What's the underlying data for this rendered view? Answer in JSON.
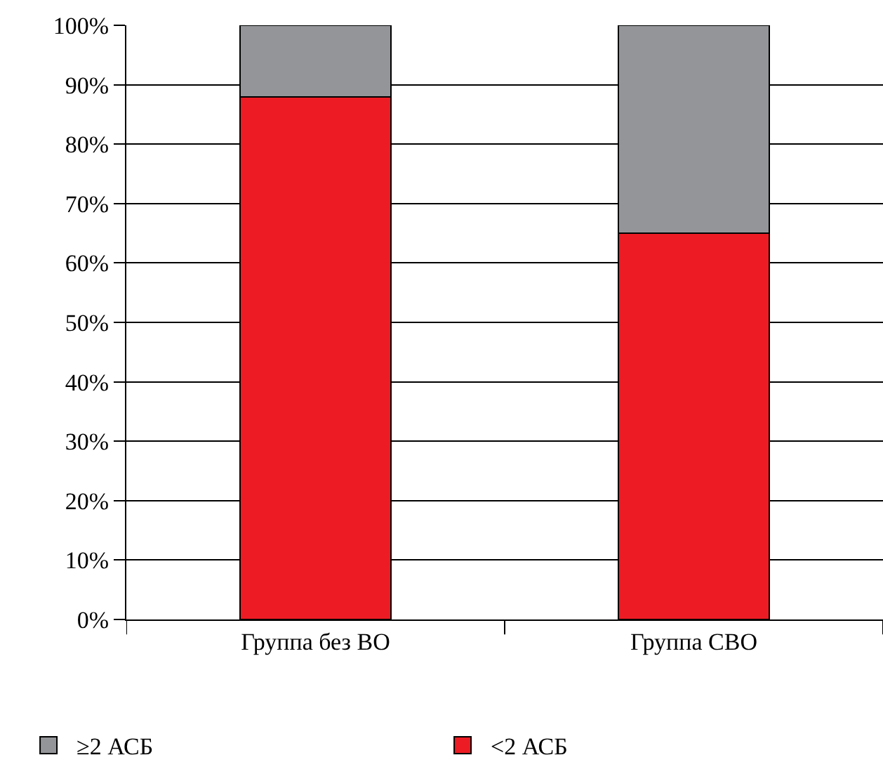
{
  "chart_data": {
    "type": "bar",
    "stacked": true,
    "categories": [
      "Группа без ВО",
      "Группа СВО"
    ],
    "series": [
      {
        "name": "<2 АСБ",
        "color": "#ed1c24",
        "values": [
          88,
          65
        ]
      },
      {
        "name": "≥2 АСБ",
        "color": "#939598",
        "values": [
          12,
          35
        ]
      }
    ],
    "ylim": [
      0,
      100
    ],
    "yticks": [
      {
        "value": 0,
        "label": "0%"
      },
      {
        "value": 10,
        "label": "10%"
      },
      {
        "value": 20,
        "label": "20%"
      },
      {
        "value": 30,
        "label": "30%"
      },
      {
        "value": 40,
        "label": "40%"
      },
      {
        "value": 50,
        "label": "50%"
      },
      {
        "value": 60,
        "label": "60%"
      },
      {
        "value": 70,
        "label": "70%"
      },
      {
        "value": 80,
        "label": "80%"
      },
      {
        "value": 90,
        "label": "90%"
      },
      {
        "value": 100,
        "label": "100%"
      }
    ],
    "grid": "y",
    "legend": "bottom"
  }
}
